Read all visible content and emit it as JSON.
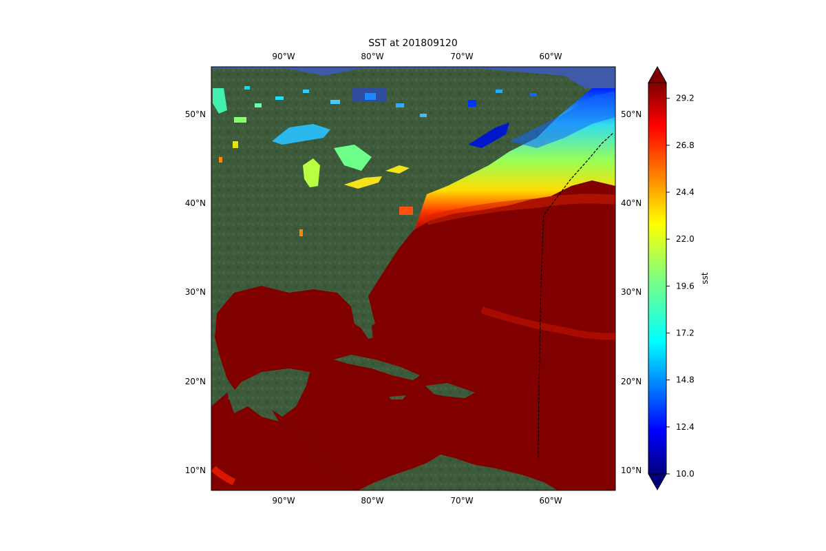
{
  "figure": {
    "title": "SST at 201809120"
  },
  "map": {
    "lon_ticks": [
      "90°W",
      "80°W",
      "70°W",
      "60°W"
    ],
    "lat_ticks": [
      "50°N",
      "40°N",
      "30°N",
      "20°N",
      "10°N"
    ],
    "extent": {
      "lon": [
        -98,
        -53
      ],
      "lat": [
        8,
        55
      ]
    },
    "track": {
      "description_hidden": true,
      "points": [
        [
          -53.3,
          47.6
        ],
        [
          -54.5,
          46.5
        ],
        [
          -56.2,
          44.5
        ],
        [
          -58.0,
          42.5
        ],
        [
          -59.5,
          40.5
        ],
        [
          -61.0,
          38.5
        ],
        [
          -61.3,
          30.0
        ],
        [
          -61.5,
          20.0
        ],
        [
          -61.6,
          11.5
        ]
      ]
    },
    "colors": {
      "warm": "#800000",
      "land": "#3c5a3a",
      "ocean_north": "#3e5aa8",
      "track": "#000000"
    }
  },
  "colorbar": {
    "label": "sst",
    "ticks": [
      "29.2",
      "26.8",
      "24.4",
      "22.0",
      "19.6",
      "17.2",
      "14.8",
      "12.4",
      "10.0"
    ],
    "range": [
      10.0,
      30.0
    ],
    "colormap": "jet"
  }
}
